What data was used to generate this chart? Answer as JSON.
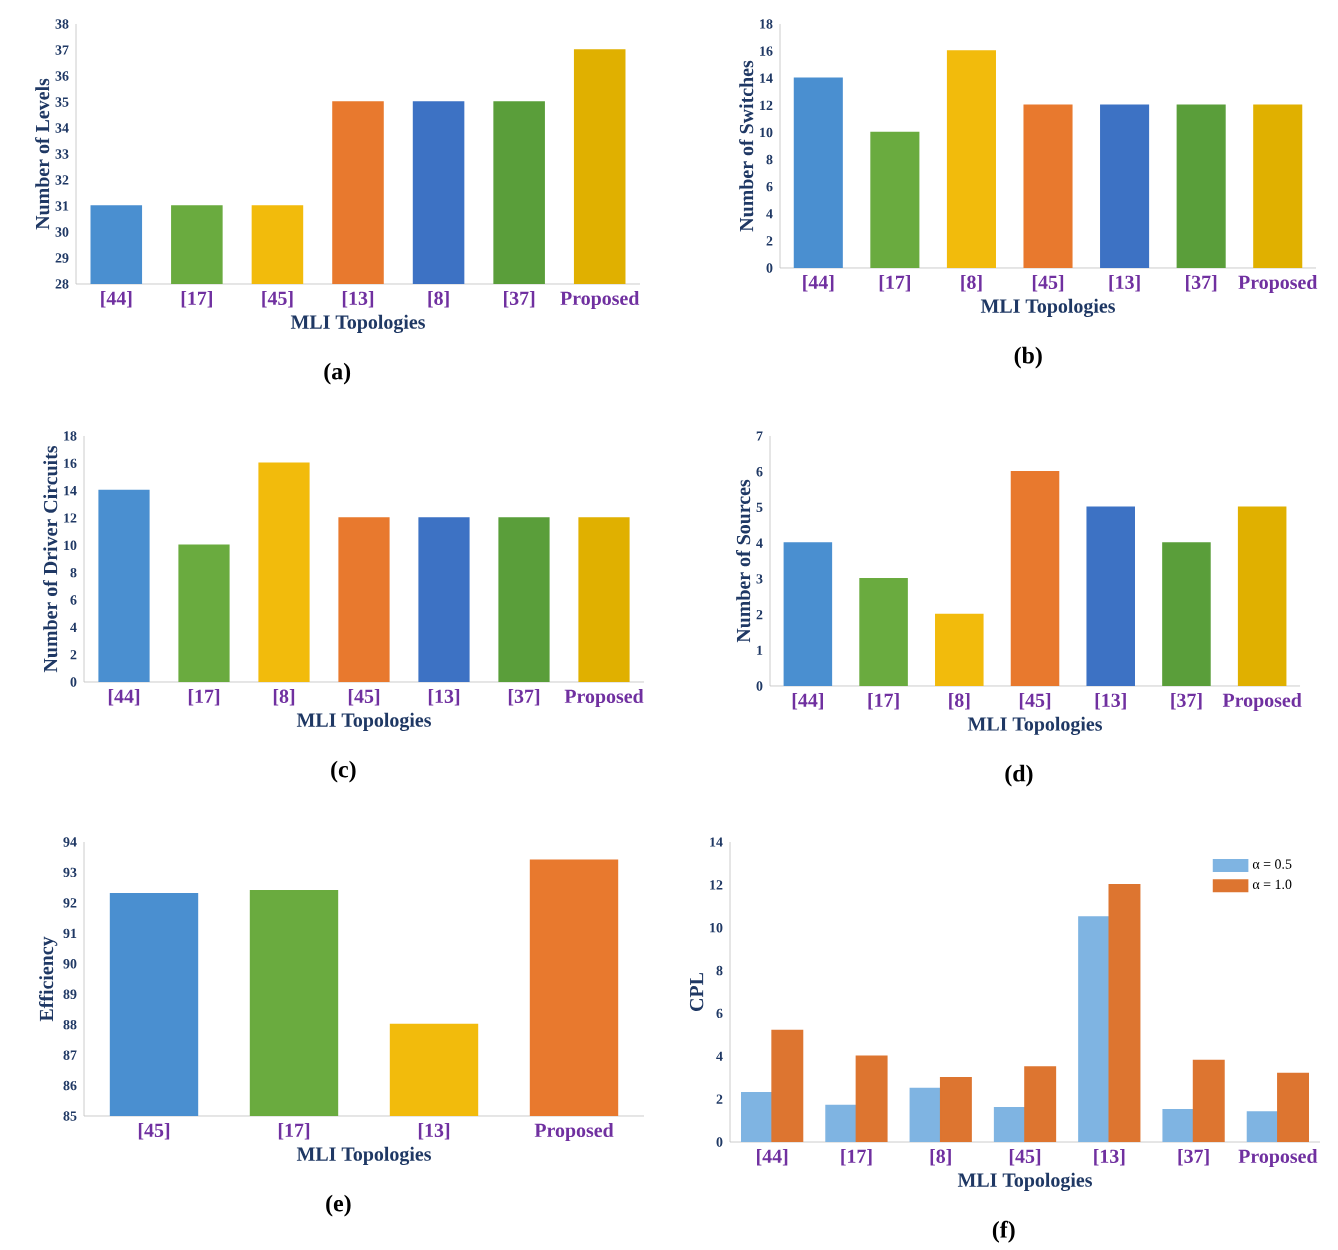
{
  "chart_data": [
    {
      "type": "bar",
      "title": "(a)",
      "xlabel": "MLI Topologies",
      "ylabel": "Number of Levels",
      "categories": [
        "[44]",
        "[17]",
        "[45]",
        "[13]",
        "[8]",
        "[37]",
        "Proposed"
      ],
      "values": [
        31,
        31,
        31,
        35,
        35,
        35,
        37
      ],
      "colors": [
        "#4a8fd0",
        "#6aab3f",
        "#f2bb0c",
        "#e8792e",
        "#3d72c4",
        "#5a9e3a",
        "#e0b000"
      ],
      "ylim": [
        28,
        38
      ],
      "yticks": [
        28,
        29,
        30,
        31,
        32,
        33,
        34,
        35,
        36,
        37,
        38
      ]
    },
    {
      "type": "bar",
      "title": "(b)",
      "xlabel": "MLI Topologies",
      "ylabel": "Number of Switches",
      "categories": [
        "[44]",
        "[17]",
        "[8]",
        "[45]",
        "[13]",
        "[37]",
        "Proposed"
      ],
      "values": [
        14,
        10,
        16,
        12,
        12,
        12,
        12
      ],
      "colors": [
        "#4a8fd0",
        "#6aab3f",
        "#f2bb0c",
        "#e8792e",
        "#3d72c4",
        "#5a9e3a",
        "#e0b000"
      ],
      "ylim": [
        0,
        18
      ],
      "yticks": [
        0,
        2,
        4,
        6,
        8,
        10,
        12,
        14,
        16,
        18
      ]
    },
    {
      "type": "bar",
      "title": "(c)",
      "xlabel": "MLI Topologies",
      "ylabel": "Number of Driver Circuits",
      "categories": [
        "[44]",
        "[17]",
        "[8]",
        "[45]",
        "[13]",
        "[37]",
        "Proposed"
      ],
      "values": [
        14,
        10,
        16,
        12,
        12,
        12,
        12
      ],
      "colors": [
        "#4a8fd0",
        "#6aab3f",
        "#f2bb0c",
        "#e8792e",
        "#3d72c4",
        "#5a9e3a",
        "#e0b000"
      ],
      "ylim": [
        0,
        18
      ],
      "yticks": [
        0,
        2,
        4,
        6,
        8,
        10,
        12,
        14,
        16,
        18
      ]
    },
    {
      "type": "bar",
      "title": "(d)",
      "xlabel": "MLI Topologies",
      "ylabel": "Number of Sources",
      "categories": [
        "[44]",
        "[17]",
        "[8]",
        "[45]",
        "[13]",
        "[37]",
        "Proposed"
      ],
      "values": [
        4,
        3,
        2,
        6,
        5,
        4,
        5
      ],
      "colors": [
        "#4a8fd0",
        "#6aab3f",
        "#f2bb0c",
        "#e8792e",
        "#3d72c4",
        "#5a9e3a",
        "#e0b000"
      ],
      "ylim": [
        0,
        7
      ],
      "yticks": [
        0,
        1,
        2,
        3,
        4,
        5,
        6,
        7
      ]
    },
    {
      "type": "bar",
      "title": "(e)",
      "xlabel": "MLI Topologies",
      "ylabel": "Efficiency",
      "categories": [
        "[45]",
        "[17]",
        "[13]",
        "Proposed"
      ],
      "values": [
        92.3,
        92.4,
        88,
        93.4
      ],
      "colors": [
        "#4a8fd0",
        "#6aab3f",
        "#f2bb0c",
        "#e8792e"
      ],
      "ylim": [
        85,
        94
      ],
      "yticks": [
        85,
        86,
        87,
        88,
        89,
        90,
        91,
        92,
        93,
        94
      ]
    },
    {
      "type": "bar",
      "title": "(f)",
      "xlabel": "MLI Topologies",
      "ylabel": "CPL",
      "categories": [
        "[44]",
        "[17]",
        "[8]",
        "[45]",
        "[13]",
        "[37]",
        "Proposed"
      ],
      "legend": "top right",
      "ylim": [
        0,
        14
      ],
      "yticks": [
        0,
        2,
        4,
        6,
        8,
        10,
        12,
        14
      ],
      "series": [
        {
          "name": "α = 0.5",
          "color": "#7fb4e2",
          "values": [
            2.3,
            1.7,
            2.5,
            1.6,
            10.5,
            1.5,
            1.4
          ]
        },
        {
          "name": "α = 1.0",
          "color": "#dd7530",
          "values": [
            5.2,
            4.0,
            3.0,
            3.5,
            12,
            3.8,
            3.2
          ]
        }
      ]
    }
  ]
}
